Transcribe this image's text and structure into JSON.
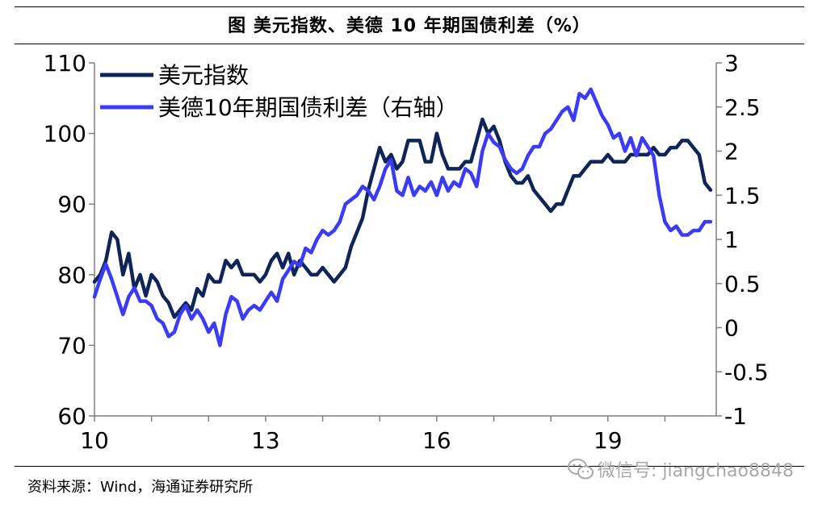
{
  "title": "图  美元指数、美德 10 年期国债利差（%）",
  "source": "资料来源：Wind，海通证券研究所",
  "watermark": {
    "text": "微信号: jiangchao8848",
    "icon": "wechat-icon"
  },
  "chart_data": {
    "type": "line",
    "x_ticks": [
      "10",
      "13",
      "16",
      "19"
    ],
    "x_tick_values": [
      2010,
      2013,
      2016,
      2019
    ],
    "xlim": [
      2010,
      2020.9
    ],
    "y_left": {
      "lim": [
        60,
        110
      ],
      "ticks": [
        "60",
        "70",
        "80",
        "90",
        "100",
        "110"
      ]
    },
    "y_right": {
      "lim": [
        -1,
        3
      ],
      "ticks": [
        "-1",
        "-0.5",
        "0",
        "0.5",
        "1",
        "1.5",
        "2",
        "2.5",
        "3"
      ]
    },
    "legend_position": "top-left",
    "grid": false,
    "series": [
      {
        "name": "美元指数",
        "axis": "left",
        "color": "#0f2557",
        "x": [
          2010.0,
          2010.1,
          2010.2,
          2010.3,
          2010.4,
          2010.5,
          2010.6,
          2010.7,
          2010.8,
          2010.9,
          2011.0,
          2011.1,
          2011.2,
          2011.3,
          2011.4,
          2011.5,
          2011.6,
          2011.7,
          2011.8,
          2011.9,
          2012.0,
          2012.1,
          2012.2,
          2012.3,
          2012.4,
          2012.5,
          2012.6,
          2012.7,
          2012.8,
          2012.9,
          2013.0,
          2013.1,
          2013.2,
          2013.3,
          2013.4,
          2013.5,
          2013.6,
          2013.7,
          2013.8,
          2013.9,
          2014.0,
          2014.1,
          2014.2,
          2014.3,
          2014.4,
          2014.5,
          2014.6,
          2014.7,
          2014.8,
          2014.9,
          2015.0,
          2015.1,
          2015.2,
          2015.3,
          2015.4,
          2015.5,
          2015.6,
          2015.7,
          2015.8,
          2015.9,
          2016.0,
          2016.1,
          2016.2,
          2016.3,
          2016.4,
          2016.5,
          2016.6,
          2016.7,
          2016.8,
          2016.9,
          2017.0,
          2017.1,
          2017.2,
          2017.3,
          2017.4,
          2017.5,
          2017.6,
          2017.7,
          2017.8,
          2017.9,
          2018.0,
          2018.1,
          2018.2,
          2018.3,
          2018.4,
          2018.5,
          2018.6,
          2018.7,
          2018.8,
          2018.9,
          2019.0,
          2019.1,
          2019.2,
          2019.3,
          2019.4,
          2019.5,
          2019.6,
          2019.7,
          2019.8,
          2019.9,
          2020.0,
          2020.1,
          2020.2,
          2020.3,
          2020.4,
          2020.5,
          2020.6,
          2020.7,
          2020.8
        ],
        "values": [
          79,
          80,
          82,
          86,
          85,
          80,
          83,
          78,
          80,
          77,
          80,
          79,
          77,
          76,
          74,
          75,
          76,
          75,
          78,
          77,
          80,
          79,
          79,
          82,
          81,
          82,
          80,
          80,
          80,
          79,
          80,
          82,
          83,
          81,
          83,
          80,
          82,
          81,
          80,
          80,
          81,
          80,
          79,
          80,
          81,
          84,
          86,
          88,
          92,
          95,
          98,
          96,
          97,
          95,
          96,
          99,
          99,
          99,
          96,
          96,
          100,
          97,
          95,
          95,
          95,
          96,
          96,
          99,
          102,
          100,
          101,
          99,
          96,
          94,
          93,
          93,
          94,
          92,
          91,
          90,
          89,
          90,
          90,
          92,
          94,
          94,
          95,
          96,
          96,
          96,
          97,
          96,
          96,
          96,
          97,
          97,
          97,
          97,
          98,
          97,
          97,
          98,
          98,
          99,
          99,
          98,
          97,
          93,
          92
        ]
      },
      {
        "name": "美德10年期国债利差（右轴）",
        "axis": "right",
        "color": "#3b3bf5",
        "x": [
          2010.0,
          2010.1,
          2010.2,
          2010.3,
          2010.4,
          2010.5,
          2010.6,
          2010.7,
          2010.8,
          2010.9,
          2011.0,
          2011.1,
          2011.2,
          2011.3,
          2011.4,
          2011.5,
          2011.6,
          2011.7,
          2011.8,
          2011.9,
          2012.0,
          2012.1,
          2012.2,
          2012.3,
          2012.4,
          2012.5,
          2012.6,
          2012.7,
          2012.8,
          2012.9,
          2013.0,
          2013.1,
          2013.2,
          2013.3,
          2013.4,
          2013.5,
          2013.6,
          2013.7,
          2013.8,
          2013.9,
          2014.0,
          2014.1,
          2014.2,
          2014.3,
          2014.4,
          2014.5,
          2014.6,
          2014.7,
          2014.8,
          2014.9,
          2015.0,
          2015.1,
          2015.2,
          2015.3,
          2015.4,
          2015.5,
          2015.6,
          2015.7,
          2015.8,
          2015.9,
          2016.0,
          2016.1,
          2016.2,
          2016.3,
          2016.4,
          2016.5,
          2016.6,
          2016.7,
          2016.8,
          2016.9,
          2017.0,
          2017.1,
          2017.2,
          2017.3,
          2017.4,
          2017.5,
          2017.6,
          2017.7,
          2017.8,
          2017.9,
          2018.0,
          2018.1,
          2018.2,
          2018.3,
          2018.4,
          2018.5,
          2018.6,
          2018.7,
          2018.8,
          2018.9,
          2019.0,
          2019.1,
          2019.2,
          2019.3,
          2019.4,
          2019.5,
          2019.6,
          2019.7,
          2019.8,
          2019.9,
          2020.0,
          2020.1,
          2020.2,
          2020.3,
          2020.4,
          2020.5,
          2020.6,
          2020.7,
          2020.8
        ],
        "values": [
          0.35,
          0.55,
          0.72,
          0.55,
          0.35,
          0.15,
          0.35,
          0.45,
          0.3,
          0.3,
          0.25,
          0.1,
          0.05,
          -0.1,
          -0.05,
          0.15,
          0.25,
          0.1,
          0.2,
          0.1,
          -0.05,
          0.05,
          -0.2,
          0.15,
          0.35,
          0.3,
          0.1,
          0.2,
          0.25,
          0.2,
          0.3,
          0.4,
          0.3,
          0.55,
          0.65,
          0.75,
          0.7,
          0.9,
          0.85,
          1.0,
          1.1,
          1.05,
          1.1,
          1.2,
          1.4,
          1.45,
          1.5,
          1.6,
          1.55,
          1.45,
          1.6,
          1.8,
          1.9,
          1.55,
          1.5,
          1.7,
          1.5,
          1.6,
          1.55,
          1.65,
          1.5,
          1.7,
          1.55,
          1.65,
          1.6,
          1.8,
          1.75,
          1.6,
          2.0,
          2.2,
          2.1,
          2.05,
          1.9,
          1.8,
          1.75,
          1.8,
          1.95,
          2.05,
          2.05,
          2.2,
          2.25,
          2.35,
          2.45,
          2.5,
          2.35,
          2.65,
          2.6,
          2.7,
          2.55,
          2.4,
          2.3,
          2.15,
          2.2,
          2.0,
          2.15,
          1.95,
          2.15,
          2.05,
          1.95,
          1.5,
          1.2,
          1.1,
          1.15,
          1.05,
          1.05,
          1.1,
          1.1,
          1.2,
          1.2
        ]
      }
    ]
  }
}
